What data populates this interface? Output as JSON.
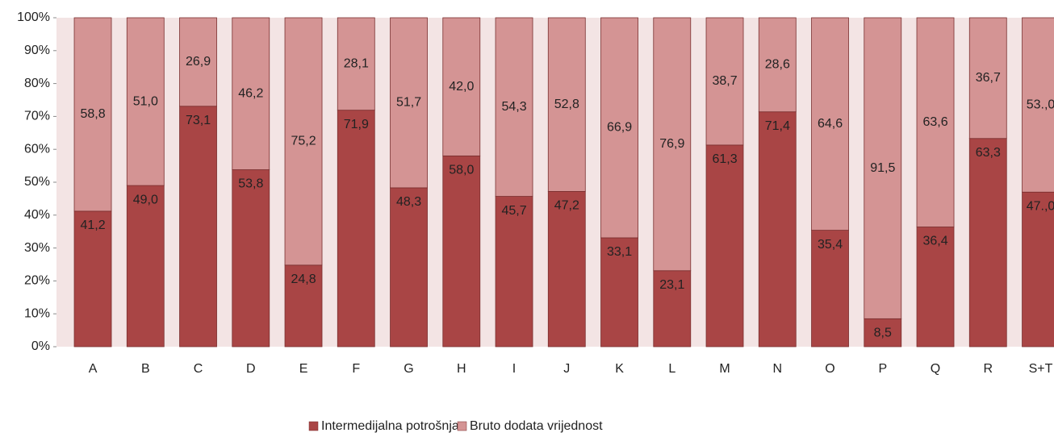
{
  "chart_data": {
    "type": "bar",
    "stacked": true,
    "categories": [
      "A",
      "B",
      "C",
      "D",
      "E",
      "F",
      "G",
      "H",
      "I",
      "J",
      "K",
      "L",
      "M",
      "N",
      "O",
      "P",
      "Q",
      "R",
      "S+T"
    ],
    "series": [
      {
        "name": "Intermedijalna potrošnja",
        "color": "#a94545",
        "values": [
          41.2,
          49.0,
          73.1,
          53.8,
          24.8,
          71.9,
          48.3,
          58.0,
          45.7,
          47.2,
          33.1,
          23.1,
          61.3,
          71.4,
          35.4,
          8.5,
          36.4,
          63.3,
          47.0
        ],
        "value_labels": [
          "41,2",
          "49,0",
          "73,1",
          "53,8",
          "24,8",
          "71,9",
          "48,3",
          "58,0",
          "45,7",
          "47,2",
          "33,1",
          "23,1",
          "61,3",
          "71,4",
          "35,4",
          "8,5",
          "36,4",
          "63,3",
          "47.,0"
        ]
      },
      {
        "name": "Bruto dodata vrijednost",
        "color": "#d49494",
        "values": [
          58.8,
          51.0,
          26.9,
          46.2,
          75.2,
          28.1,
          51.7,
          42.0,
          54.3,
          52.8,
          66.9,
          76.9,
          38.7,
          28.6,
          64.6,
          91.5,
          63.6,
          36.7,
          53.0
        ],
        "value_labels": [
          "58,8",
          "51,0",
          "26,9",
          "46,2",
          "75,2",
          "28,1",
          "51,7",
          "42,0",
          "54,3",
          "52,8",
          "66,9",
          "76,9",
          "38,7",
          "28,6",
          "64,6",
          "91,5",
          "63,6",
          "36,7",
          "53.,0"
        ]
      }
    ],
    "ylim": [
      0,
      100
    ],
    "yticks": [
      {
        "value": 0,
        "label": "0%"
      },
      {
        "value": 10,
        "label": "10%"
      },
      {
        "value": 20,
        "label": "20%"
      },
      {
        "value": 30,
        "label": "30%"
      },
      {
        "value": 40,
        "label": "40%"
      },
      {
        "value": 50,
        "label": "50%"
      },
      {
        "value": 60,
        "label": "60%"
      },
      {
        "value": 70,
        "label": "70%"
      },
      {
        "value": 80,
        "label": "80%"
      },
      {
        "value": 90,
        "label": "90%"
      },
      {
        "value": 100,
        "label": "100%"
      }
    ],
    "legend": "bottom"
  }
}
